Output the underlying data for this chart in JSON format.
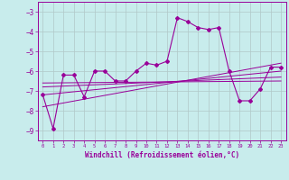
{
  "xlabel": "Windchill (Refroidissement éolien,°C)",
  "background_color": "#c8ecec",
  "grid_color": "#b0c8c8",
  "line_color": "#990099",
  "xlim": [
    -0.5,
    23.5
  ],
  "ylim": [
    -9.5,
    -2.5
  ],
  "yticks": [
    -9,
    -8,
    -7,
    -6,
    -5,
    -4,
    -3
  ],
  "xticks": [
    0,
    1,
    2,
    3,
    4,
    5,
    6,
    7,
    8,
    9,
    10,
    11,
    12,
    13,
    14,
    15,
    16,
    17,
    18,
    19,
    20,
    21,
    22,
    23
  ],
  "series": [
    [
      0,
      -7.2
    ],
    [
      1,
      -8.9
    ],
    [
      2,
      -6.2
    ],
    [
      3,
      -6.2
    ],
    [
      4,
      -7.3
    ],
    [
      5,
      -6.0
    ],
    [
      6,
      -6.0
    ],
    [
      7,
      -6.5
    ],
    [
      8,
      -6.5
    ],
    [
      9,
      -6.0
    ],
    [
      10,
      -5.6
    ],
    [
      11,
      -5.7
    ],
    [
      12,
      -5.5
    ],
    [
      13,
      -3.3
    ],
    [
      14,
      -3.5
    ],
    [
      15,
      -3.8
    ],
    [
      16,
      -3.9
    ],
    [
      17,
      -3.8
    ],
    [
      18,
      -6.0
    ],
    [
      19,
      -7.5
    ],
    [
      20,
      -7.5
    ],
    [
      21,
      -6.9
    ],
    [
      22,
      -5.8
    ],
    [
      23,
      -5.8
    ]
  ],
  "regression_lines": [
    {
      "x": [
        0,
        23
      ],
      "y": [
        -6.6,
        -6.5
      ]
    },
    {
      "x": [
        0,
        23
      ],
      "y": [
        -6.8,
        -6.3
      ]
    },
    {
      "x": [
        0,
        23
      ],
      "y": [
        -7.2,
        -6.0
      ]
    },
    {
      "x": [
        0,
        23
      ],
      "y": [
        -7.8,
        -5.6
      ]
    }
  ]
}
